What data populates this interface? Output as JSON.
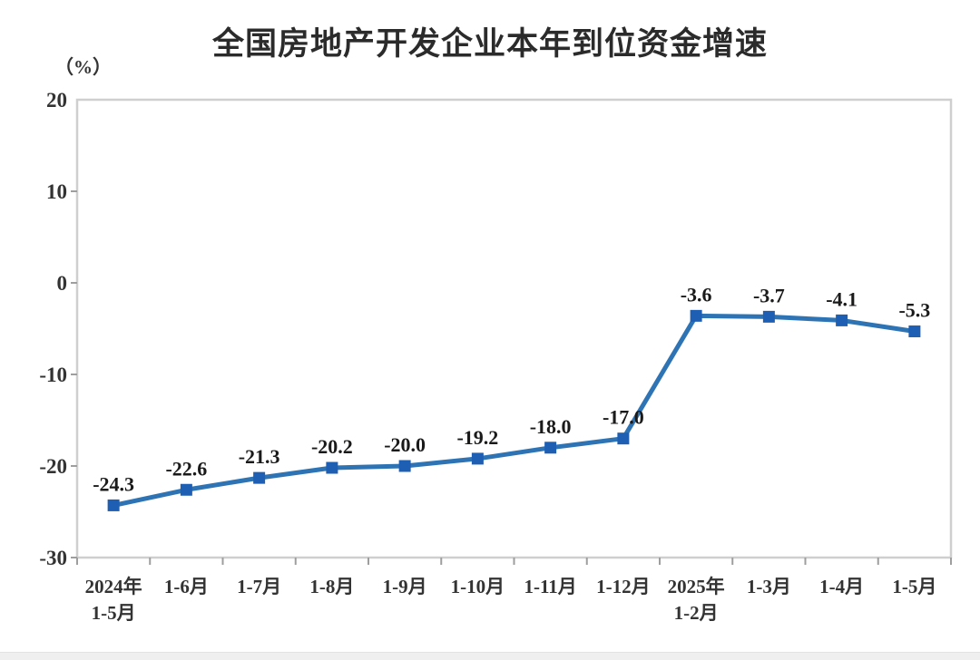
{
  "page": {
    "background": "#ffffff",
    "bottom_strip_color": "#efefef"
  },
  "chart_data": {
    "type": "line",
    "title": "全国房地产开发企业本年到位资金增速",
    "unit_label": "（%）",
    "categories": [
      "2024年\n1-5月",
      "1-6月",
      "1-7月",
      "1-8月",
      "1-9月",
      "1-10月",
      "1-11月",
      "1-12月",
      "2025年\n1-2月",
      "1-3月",
      "1-4月",
      "1-5月"
    ],
    "values": [
      -24.3,
      -22.6,
      -21.3,
      -20.2,
      -20.0,
      -19.2,
      -18.0,
      -17.0,
      -3.6,
      -3.7,
      -4.1,
      -5.3
    ],
    "data_labels": [
      "-24.3",
      "-22.6",
      "-21.3",
      "-20.2",
      "-20.0",
      "-19.2",
      "-18.0",
      "-17.0",
      "-3.6",
      "-3.7",
      "-4.1",
      "-5.3"
    ],
    "ylim": [
      -30,
      20
    ],
    "yticks": [
      20,
      10,
      0,
      -10,
      -20,
      -30
    ],
    "xlabel": "",
    "ylabel": "（%）",
    "grid": false,
    "legend": "none",
    "marker": "square",
    "colors": {
      "line": "#2e74b5",
      "marker": "#1e5fb4",
      "axis": "#9e9e9e",
      "frame": "#cfcfcf",
      "title_text": "#2b2b2b",
      "tick_text": "#333333",
      "data_label_text": "#1a1a1a"
    }
  }
}
